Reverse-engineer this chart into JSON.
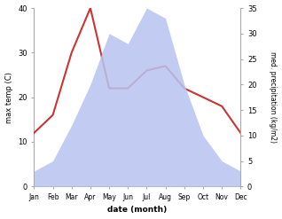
{
  "months": [
    "Jan",
    "Feb",
    "Mar",
    "Apr",
    "May",
    "Jun",
    "Jul",
    "Aug",
    "Sep",
    "Oct",
    "Nov",
    "Dec"
  ],
  "temperature": [
    12,
    16,
    30,
    40,
    22,
    22,
    26,
    27,
    22,
    20,
    18,
    12
  ],
  "precipitation": [
    3,
    5,
    12,
    20,
    30,
    28,
    35,
    33,
    20,
    10,
    5,
    3
  ],
  "temp_color": "#cc3333",
  "precip_fill_color": "#b8c4f0",
  "temp_ylim": [
    0,
    40
  ],
  "precip_ylim": [
    0,
    35
  ],
  "temp_yticks": [
    0,
    10,
    20,
    30,
    40
  ],
  "precip_yticks": [
    0,
    5,
    10,
    15,
    20,
    25,
    30,
    35
  ],
  "xlabel": "date (month)",
  "ylabel_left": "max temp (C)",
  "ylabel_right": "med. precipitation (kg/m2)"
}
